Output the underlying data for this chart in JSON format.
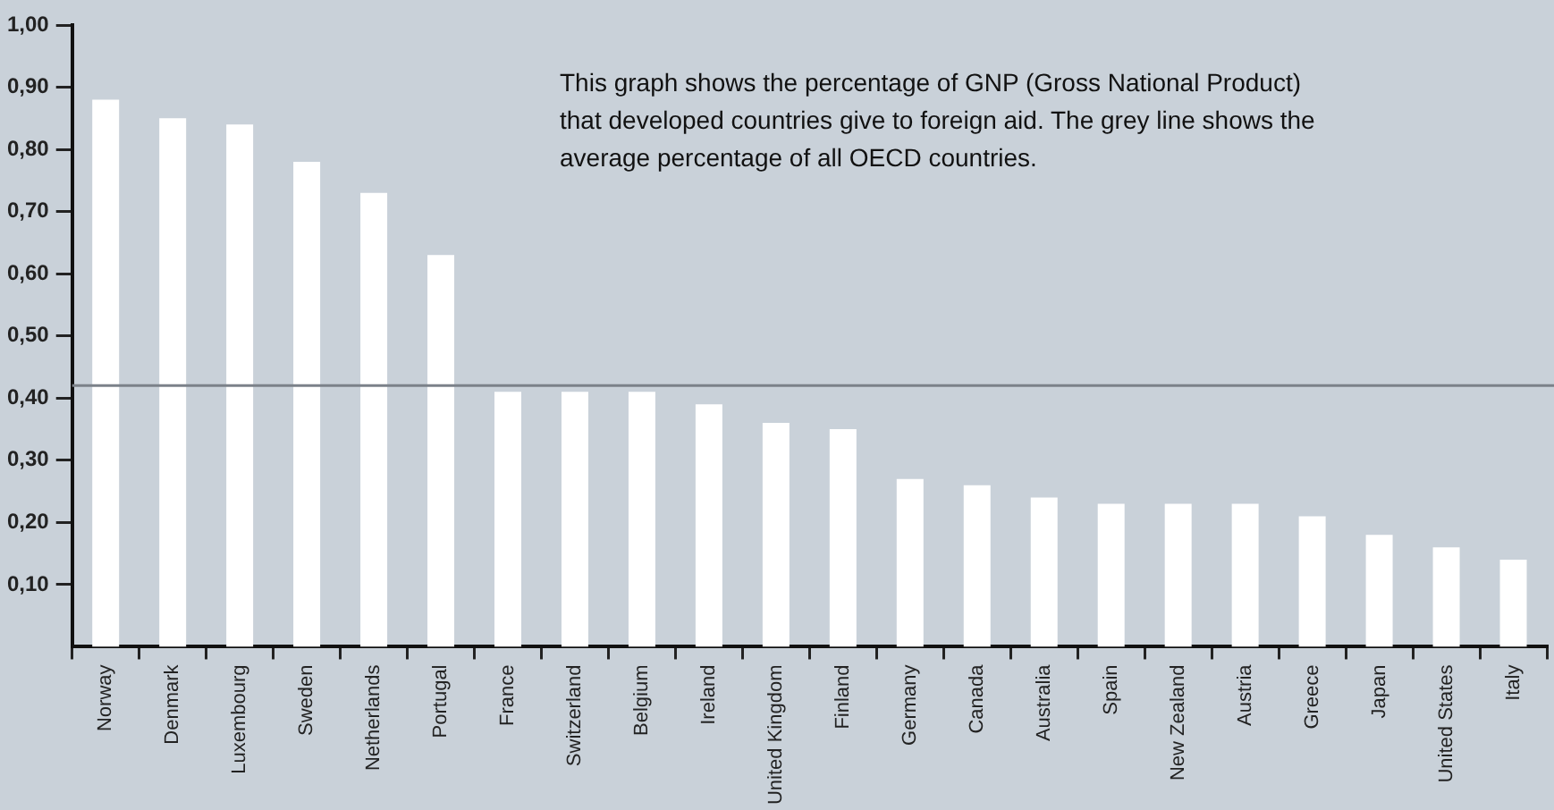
{
  "chart_data": {
    "type": "bar",
    "annotations": [
      "This graph shows the percentage of GNP (Gross National Product) that developed countries give to foreign aid. The grey line shows the average percentage of all OECD countries."
    ],
    "categories": [
      "Norway",
      "Denmark",
      "Luxembourg",
      "Sweden",
      "Netherlands",
      "Portugal",
      "France",
      "Switzerland",
      "Belgium",
      "Ireland",
      "United Kingdom",
      "Finland",
      "Germany",
      "Canada",
      "Australia",
      "Spain",
      "New Zealand",
      "Austria",
      "Greece",
      "Japan",
      "United States",
      "Italy"
    ],
    "values": [
      0.88,
      0.85,
      0.84,
      0.78,
      0.73,
      0.63,
      0.41,
      0.41,
      0.41,
      0.39,
      0.36,
      0.35,
      0.27,
      0.26,
      0.24,
      0.23,
      0.23,
      0.23,
      0.21,
      0.18,
      0.16,
      0.14
    ],
    "color": "#ffffff",
    "ylim": [
      0,
      1.0
    ],
    "yticks": [
      {
        "value": 0.1,
        "label": "0,10"
      },
      {
        "value": 0.2,
        "label": "0,20"
      },
      {
        "value": 0.3,
        "label": "0,30"
      },
      {
        "value": 0.4,
        "label": "0,40"
      },
      {
        "value": 0.5,
        "label": "0,50"
      },
      {
        "value": 0.6,
        "label": "0,60"
      },
      {
        "value": 0.7,
        "label": "0,70"
      },
      {
        "value": 0.8,
        "label": "0,80"
      },
      {
        "value": 0.9,
        "label": "0,90"
      },
      {
        "value": 1.0,
        "label": "1,00"
      }
    ],
    "ref_lines": [
      {
        "axis": "y",
        "value": 0.42,
        "color": "#7b8189"
      }
    ],
    "grid": false,
    "legend": false
  }
}
